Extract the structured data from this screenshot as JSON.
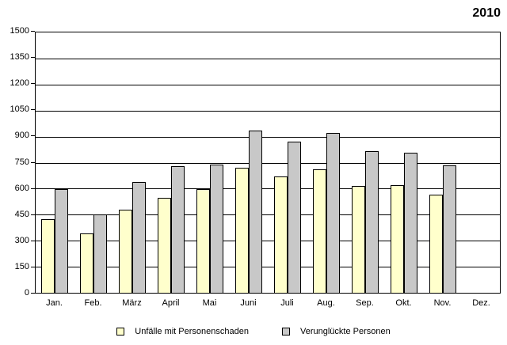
{
  "title": "2010",
  "chart_data": {
    "type": "bar",
    "categories": [
      "Jan.",
      "Feb.",
      "März",
      "April",
      "Mai",
      "Juni",
      "Juli",
      "Aug.",
      "Sep.",
      "Okt.",
      "Nov.",
      "Dez."
    ],
    "series": [
      {
        "name": "Unfälle mit Personenschaden",
        "color": "#FFFFCC",
        "values": [
          425,
          340,
          480,
          545,
          595,
          720,
          670,
          710,
          615,
          620,
          565,
          null
        ]
      },
      {
        "name": "Verunglückte Personen",
        "color": "#C8C8C8",
        "values": [
          595,
          450,
          640,
          730,
          740,
          935,
          870,
          920,
          815,
          805,
          735,
          null
        ]
      }
    ],
    "ylim": [
      0,
      1500
    ],
    "yticks": [
      0,
      150,
      300,
      450,
      600,
      750,
      900,
      1050,
      1200,
      1350,
      1500
    ],
    "grid": true,
    "legend_position": "bottom"
  },
  "colors": {
    "bar_border": "#000000",
    "grid_line": "#000000",
    "background": "#FFFFFF",
    "text": "#000000"
  }
}
